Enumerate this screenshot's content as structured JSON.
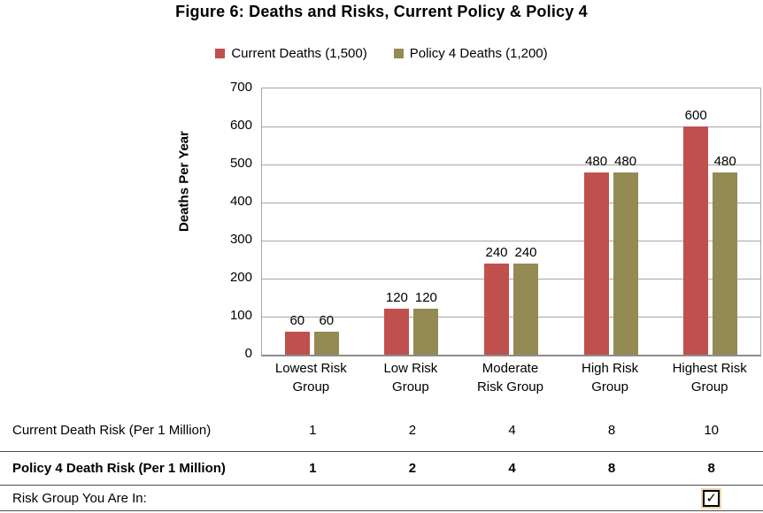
{
  "chart_data": {
    "type": "bar",
    "title": "Figure 6: Deaths and Risks, Current Policy & Policy 4",
    "categories": [
      "Lowest Risk\nGroup",
      "Low Risk\nGroup",
      "Moderate\nRisk Group",
      "High Risk\nGroup",
      "Highest Risk\nGroup"
    ],
    "series": [
      {
        "name": "Current Deaths (1,500)",
        "color": "#C0504D",
        "values": [
          60,
          120,
          240,
          480,
          600
        ]
      },
      {
        "name": "Policy 4 Deaths (1,200)",
        "color": "#948A54",
        "values": [
          60,
          120,
          240,
          480,
          480
        ]
      }
    ],
    "xlabel": "",
    "ylabel": "Deaths Per Year",
    "ylim": [
      0,
      700
    ],
    "ytick_interval": 100,
    "grid": true,
    "legend_position": "top-center",
    "data_labels": true
  },
  "risk_table": {
    "rows": [
      {
        "label": "Current Death Risk (Per 1 Million)",
        "values": [
          "1",
          "2",
          "4",
          "8",
          "10"
        ],
        "bold": false
      },
      {
        "label": "Policy 4 Death Risk (Per 1 Million)",
        "values": [
          "1",
          "2",
          "4",
          "8",
          "8"
        ],
        "bold": true
      }
    ],
    "risk_group_row": {
      "label": "Risk Group You Are In:",
      "checked_column_index": 4,
      "checkbox_checked": true,
      "checkmark": "✓"
    }
  }
}
